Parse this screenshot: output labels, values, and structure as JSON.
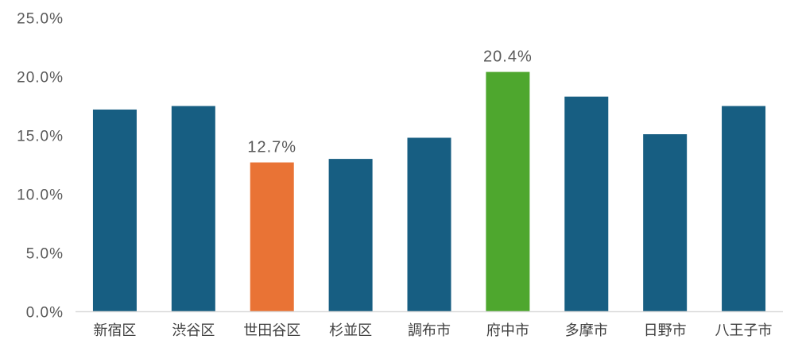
{
  "chart_data": {
    "type": "bar",
    "title": "",
    "xlabel": "",
    "ylabel": "",
    "categories": [
      "新宿区",
      "渋谷区",
      "世田谷区",
      "杉並区",
      "調布市",
      "府中市",
      "多摩市",
      "日野市",
      "八王子市"
    ],
    "values": [
      17.2,
      17.5,
      12.7,
      13.0,
      14.8,
      20.4,
      18.3,
      15.1,
      17.5
    ],
    "bar_colors": [
      "#175E82",
      "#175E82",
      "#E97335",
      "#175E82",
      "#175E82",
      "#4EA72E",
      "#175E82",
      "#175E82",
      "#175E82"
    ],
    "data_labels": [
      "",
      "",
      "12.7%",
      "",
      "",
      "20.4%",
      "",
      "",
      ""
    ],
    "ylim": [
      0,
      25
    ],
    "y_ticks": [
      0,
      5,
      10,
      15,
      20,
      25
    ],
    "y_tick_labels": [
      "0.0%",
      "5.0%",
      "10.0%",
      "15.0%",
      "20.0%",
      "25.0%"
    ],
    "grid": false,
    "legend": "none",
    "axis_color": "#D9D9D9"
  }
}
